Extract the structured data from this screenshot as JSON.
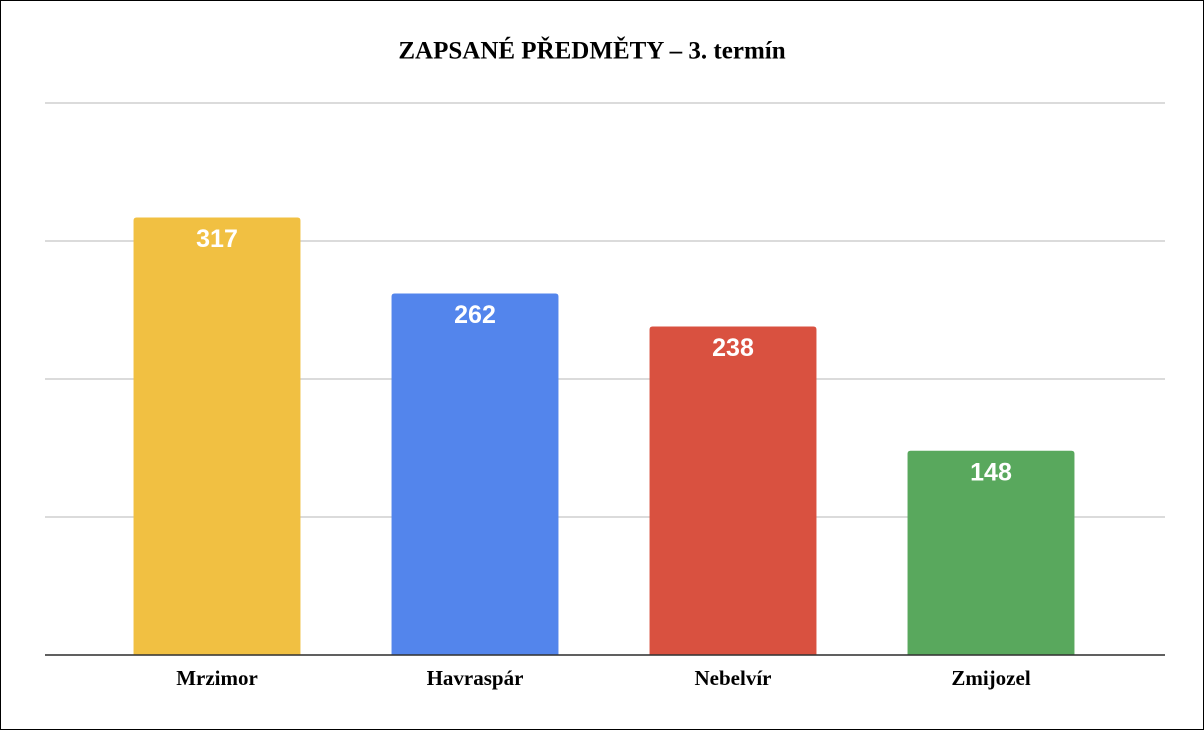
{
  "chart_data": {
    "type": "bar",
    "title": "ZAPSANÉ PŘEDMĚTY – 3. termín",
    "categories": [
      "Mrzimor",
      "Havraspár",
      "Nebelvír",
      "Zmijozel"
    ],
    "values": [
      317,
      262,
      238,
      148
    ],
    "colors": [
      "#f1c042",
      "#5385ec",
      "#d95140",
      "#59a85d"
    ],
    "ylim": [
      0,
      400
    ],
    "yticks": [
      0,
      100,
      200,
      300,
      400
    ],
    "grid": true
  }
}
